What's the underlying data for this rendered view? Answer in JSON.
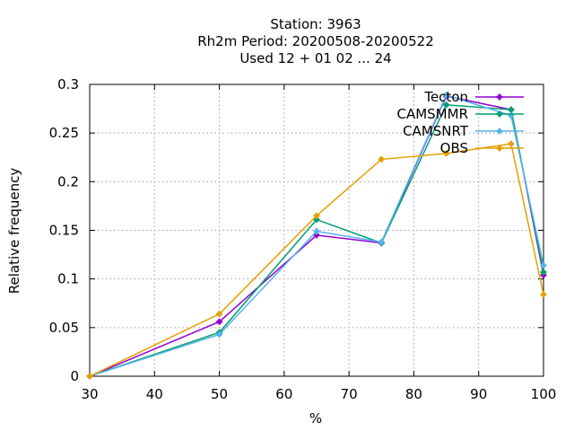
{
  "chart_data": {
    "type": "line",
    "title_lines": [
      "Station:     3963",
      "Rh2m  Period: 20200508-20200522",
      "Used  12 + 01 02 ... 24"
    ],
    "xlabel": "%",
    "ylabel": "Relative frequency",
    "xlim": [
      30,
      100
    ],
    "ylim": [
      0,
      0.3
    ],
    "xticks": [
      "30",
      "40",
      "50",
      "60",
      "70",
      "80",
      "90",
      "100"
    ],
    "xtick_values": [
      30,
      40,
      50,
      60,
      70,
      80,
      90,
      100
    ],
    "yticks": [
      "0",
      "0.05",
      "0.1",
      "0.15",
      "0.2",
      "0.25",
      "0.3"
    ],
    "ytick_values": [
      0,
      0.05,
      0.1,
      0.15,
      0.2,
      0.25,
      0.3
    ],
    "grid": true,
    "legend_position": "top-right",
    "series": [
      {
        "name": "Tecton",
        "color": "#9400d3",
        "x": [
          30,
          50,
          65,
          75,
          85,
          95,
          100
        ],
        "y": [
          0.0,
          0.056,
          0.145,
          0.137,
          0.288,
          0.274,
          0.104
        ]
      },
      {
        "name": "CAMSMMR",
        "color": "#009e73",
        "x": [
          30,
          50,
          65,
          75,
          85,
          95,
          100
        ],
        "y": [
          0.0,
          0.045,
          0.161,
          0.137,
          0.279,
          0.274,
          0.107
        ]
      },
      {
        "name": "CAMSNRT",
        "color": "#56b4e9",
        "x": [
          30,
          50,
          65,
          75,
          85,
          95,
          100
        ],
        "y": [
          0.0,
          0.043,
          0.149,
          0.138,
          0.289,
          0.268,
          0.114
        ]
      },
      {
        "name": "OBS",
        "color": "#e69f00",
        "x": [
          30,
          50,
          65,
          75,
          85,
          95,
          100
        ],
        "y": [
          0.0,
          0.064,
          0.165,
          0.223,
          0.229,
          0.239,
          0.084
        ]
      }
    ]
  }
}
